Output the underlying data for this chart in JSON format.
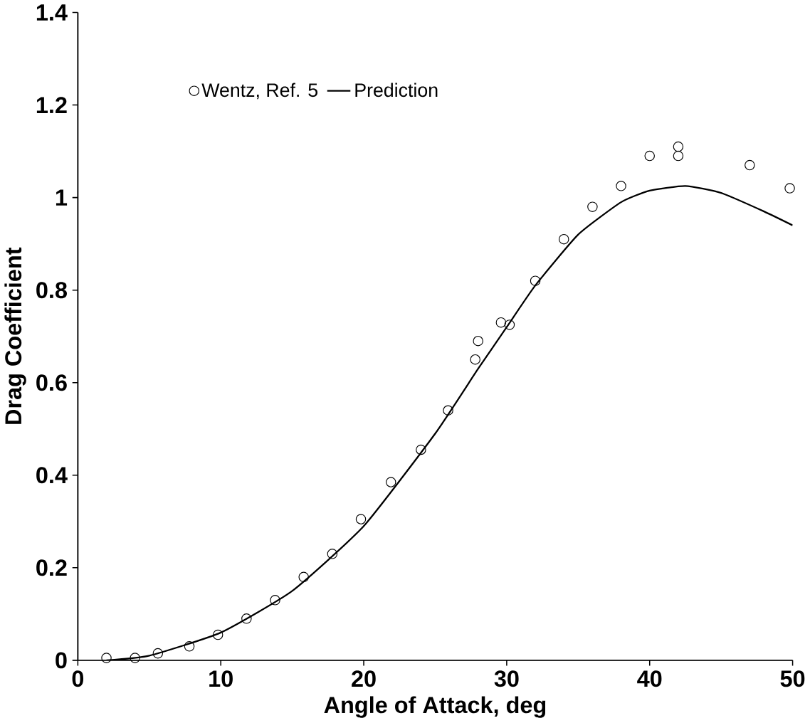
{
  "chart_data": {
    "type": "scatter",
    "xlabel": "Angle of Attack, deg",
    "ylabel": "Drag Coefficient",
    "xlim": [
      0,
      50
    ],
    "ylim": [
      0,
      1.4
    ],
    "xticks": [
      0,
      10,
      20,
      30,
      40,
      50
    ],
    "yticks": [
      0,
      0.2,
      0.4,
      0.6,
      0.8,
      1,
      1.2,
      1.4
    ],
    "legend": "top left",
    "grid": false,
    "series": [
      {
        "name": "Wentz, Ref. 5",
        "marker": "circle",
        "color": "#000000",
        "x": [
          2,
          4,
          5.6,
          7.8,
          9.8,
          11.8,
          13.8,
          15.8,
          17.8,
          19.8,
          21.9,
          24,
          25.9,
          27.8,
          28,
          29.6,
          30.2,
          32,
          34,
          36,
          38,
          40,
          42,
          42,
          47,
          49.8
        ],
        "values": [
          0.005,
          0.005,
          0.015,
          0.03,
          0.055,
          0.09,
          0.13,
          0.18,
          0.23,
          0.305,
          0.385,
          0.455,
          0.54,
          0.65,
          0.69,
          0.73,
          0.725,
          0.82,
          0.91,
          0.98,
          1.025,
          1.09,
          1.11,
          1.09,
          1.07,
          1.02
        ]
      },
      {
        "name": "Prediction",
        "type": "line",
        "marker": "none",
        "line_style": "solid",
        "color": "#000000",
        "x": [
          2,
          5,
          10,
          15,
          20,
          25,
          28,
          30,
          32,
          35,
          38,
          40,
          42.5,
          45,
          48,
          50
        ],
        "values": [
          0,
          0.01,
          0.06,
          0.15,
          0.29,
          0.49,
          0.63,
          0.72,
          0.81,
          0.92,
          0.99,
          1.015,
          1.025,
          1.01,
          0.97,
          0.94
        ]
      }
    ]
  }
}
